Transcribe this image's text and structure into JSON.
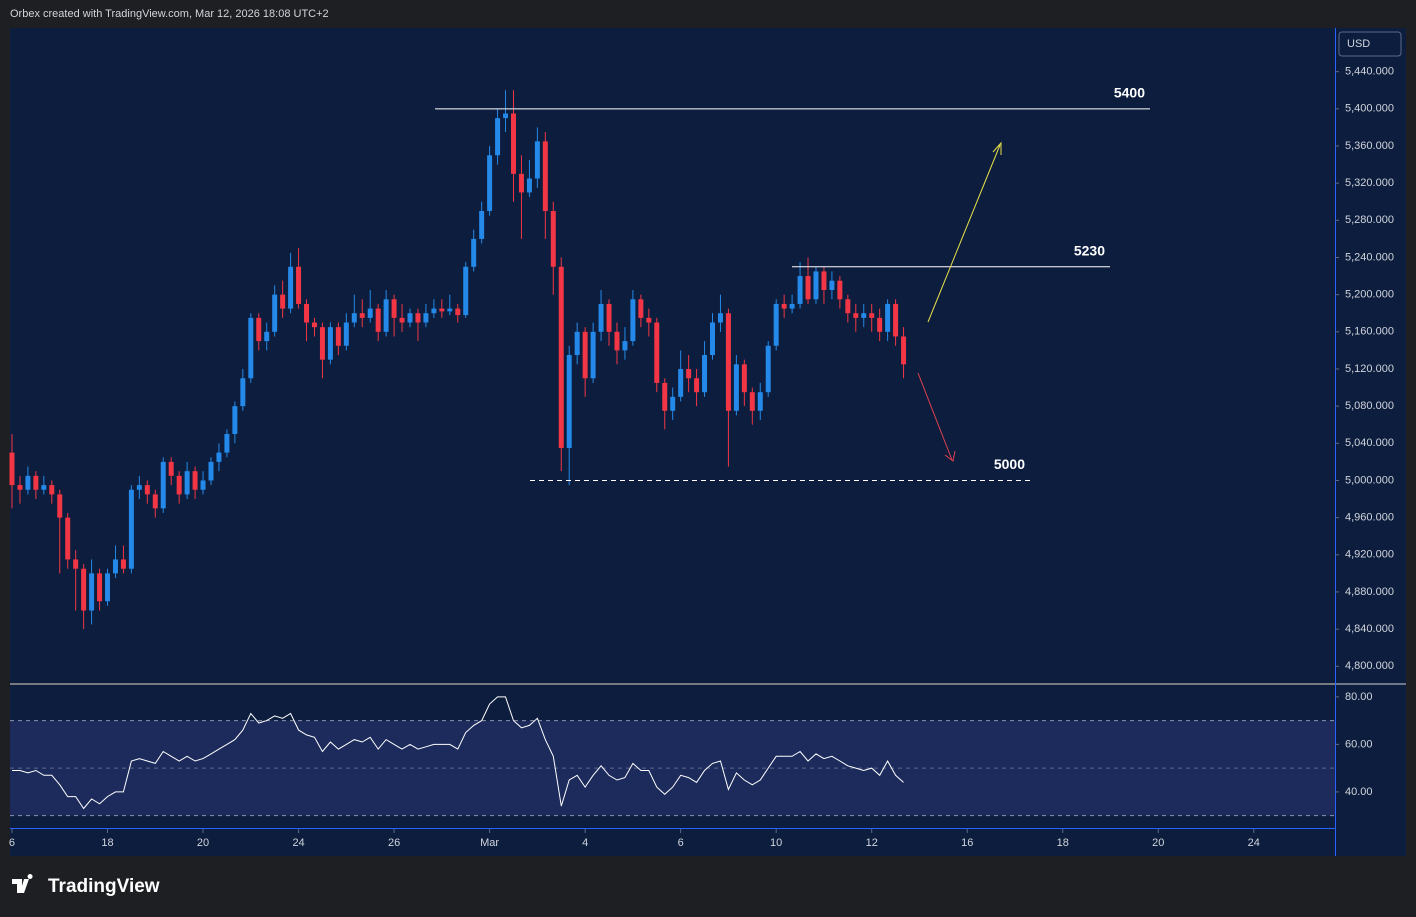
{
  "header": "Orbex created with TradingView.com, Mar 12, 2026 18:08 UTC+2",
  "footer": {
    "brand": "TradingView"
  },
  "chart_data": [
    {
      "type": "candlestick",
      "currency": "USD",
      "up_color": "#2489e8",
      "down_color": "#f23645",
      "grid": false,
      "open": [
        5030,
        4995,
        4990,
        5005,
        4990,
        4995,
        4985,
        4960,
        4915,
        4905,
        4860,
        4900,
        4870,
        4900,
        4915,
        4905,
        4990,
        4995,
        4985,
        4970,
        5020,
        5005,
        4985,
        5010,
        4990,
        5000,
        5020,
        5030,
        5050,
        5080,
        5110,
        5175,
        5150,
        5160,
        5200,
        5185,
        5230,
        5190,
        5170,
        5165,
        5130,
        5165,
        5145,
        5170,
        5180,
        5175,
        5185,
        5160,
        5195,
        5175,
        5170,
        5180,
        5170,
        5180,
        5185,
        5182,
        5185,
        5178,
        5230,
        5260,
        5290,
        5350,
        5390,
        5395,
        5330,
        5310,
        5325,
        5365,
        5290,
        5230,
        5035,
        5135,
        5160,
        5110,
        5160,
        5190,
        5160,
        5140,
        5150,
        5195,
        5175,
        5170,
        5105,
        5075,
        5090,
        5120,
        5110,
        5095,
        5135,
        5170,
        5180,
        5075,
        5125,
        5095,
        5075,
        5095,
        5145,
        5190,
        5185,
        5190,
        5220,
        5195,
        5225,
        5205,
        5215,
        5195,
        5180,
        5175,
        5180,
        5175,
        5160,
        5190,
        5155
      ],
      "high": [
        5050,
        5005,
        5015,
        5010,
        5005,
        5000,
        4990,
        4965,
        4925,
        4910,
        4915,
        4905,
        4905,
        4930,
        4930,
        4995,
        5005,
        5000,
        4990,
        5025,
        5025,
        5010,
        5020,
        5015,
        5010,
        5025,
        5040,
        5055,
        5085,
        5120,
        5180,
        5180,
        5170,
        5210,
        5215,
        5245,
        5250,
        5195,
        5175,
        5170,
        5170,
        5170,
        5180,
        5200,
        5195,
        5205,
        5190,
        5205,
        5200,
        5190,
        5185,
        5185,
        5190,
        5195,
        5195,
        5200,
        5190,
        5235,
        5270,
        5300,
        5360,
        5400,
        5420,
        5420,
        5350,
        5345,
        5380,
        5375,
        5300,
        5240,
        5145,
        5170,
        5165,
        5170,
        5205,
        5195,
        5170,
        5165,
        5205,
        5200,
        5185,
        5175,
        5110,
        5100,
        5140,
        5135,
        5120,
        5150,
        5180,
        5200,
        5185,
        5135,
        5130,
        5100,
        5105,
        5150,
        5195,
        5200,
        5200,
        5235,
        5240,
        5230,
        5230,
        5225,
        5220,
        5200,
        5190,
        5190,
        5190,
        5185,
        5195,
        5195,
        5165
      ],
      "low": [
        4970,
        4975,
        4985,
        4980,
        4985,
        4975,
        4900,
        4905,
        4860,
        4840,
        4845,
        4860,
        4865,
        4895,
        4900,
        4900,
        4980,
        4975,
        4960,
        4965,
        4995,
        4975,
        4980,
        4980,
        4985,
        4995,
        5010,
        5025,
        5040,
        5075,
        5105,
        5140,
        5140,
        5155,
        5175,
        5180,
        5185,
        5150,
        5155,
        5110,
        5125,
        5135,
        5140,
        5165,
        5165,
        5170,
        5150,
        5155,
        5155,
        5160,
        5165,
        5150,
        5165,
        5175,
        5175,
        5178,
        5170,
        5175,
        5225,
        5255,
        5285,
        5340,
        5375,
        5300,
        5260,
        5305,
        5315,
        5260,
        5200,
        5010,
        4995,
        5125,
        5090,
        5105,
        5150,
        5145,
        5125,
        5130,
        5145,
        5165,
        5155,
        5095,
        5055,
        5065,
        5085,
        5095,
        5080,
        5090,
        5130,
        5160,
        5015,
        5070,
        5080,
        5060,
        5065,
        5090,
        5140,
        5175,
        5180,
        5185,
        5190,
        5190,
        5190,
        5195,
        5185,
        5170,
        5160,
        5165,
        5160,
        5150,
        5150,
        5145,
        5110
      ],
      "close": [
        4995,
        4990,
        5005,
        4990,
        4995,
        4985,
        4960,
        4915,
        4905,
        4860,
        4900,
        4870,
        4900,
        4915,
        4905,
        4990,
        4995,
        4985,
        4970,
        5020,
        5005,
        4985,
        5010,
        4990,
        5000,
        5020,
        5030,
        5050,
        5080,
        5110,
        5175,
        5150,
        5160,
        5200,
        5185,
        5230,
        5190,
        5170,
        5165,
        5130,
        5165,
        5145,
        5170,
        5180,
        5175,
        5185,
        5160,
        5195,
        5175,
        5170,
        5180,
        5170,
        5180,
        5185,
        5182,
        5185,
        5178,
        5230,
        5260,
        5290,
        5350,
        5390,
        5395,
        5330,
        5310,
        5325,
        5365,
        5290,
        5230,
        5035,
        5135,
        5160,
        5110,
        5160,
        5190,
        5160,
        5140,
        5150,
        5195,
        5175,
        5170,
        5105,
        5075,
        5090,
        5120,
        5110,
        5095,
        5135,
        5170,
        5180,
        5075,
        5125,
        5095,
        5075,
        5095,
        5145,
        5190,
        5185,
        5190,
        5220,
        5195,
        5225,
        5205,
        5215,
        5195,
        5180,
        5175,
        5180,
        5175,
        5160,
        5190,
        5155,
        5125
      ],
      "xlim": [
        -0.25,
        166.2
      ],
      "xticks": [
        {
          "value": 0,
          "label": "6"
        },
        {
          "value": 12,
          "label": "18"
        },
        {
          "value": 24,
          "label": "20"
        },
        {
          "value": 36,
          "label": "24"
        },
        {
          "value": 48,
          "label": "26"
        },
        {
          "value": 60,
          "label": "Mar"
        },
        {
          "value": 72,
          "label": "4"
        },
        {
          "value": 84,
          "label": "6"
        },
        {
          "value": 96,
          "label": "10"
        },
        {
          "value": 108,
          "label": "12"
        },
        {
          "value": 120,
          "label": "16"
        },
        {
          "value": 132,
          "label": "18"
        },
        {
          "value": 144,
          "label": "20"
        },
        {
          "value": 156,
          "label": "24"
        }
      ],
      "ylim": [
        4782,
        5487
      ],
      "yticks": [
        {
          "value": 4800,
          "label": "4,800.000"
        },
        {
          "value": 4840,
          "label": "4,840.000"
        },
        {
          "value": 4880,
          "label": "4,880.000"
        },
        {
          "value": 4920,
          "label": "4,920.000"
        },
        {
          "value": 4960,
          "label": "4,960.000"
        },
        {
          "value": 5000,
          "label": "5,000.000"
        },
        {
          "value": 5040,
          "label": "5,040.000"
        },
        {
          "value": 5080,
          "label": "5,080.000"
        },
        {
          "value": 5120,
          "label": "5,120.000"
        },
        {
          "value": 5160,
          "label": "5,160.000"
        },
        {
          "value": 5200,
          "label": "5,200.000"
        },
        {
          "value": 5240,
          "label": "5,240.000"
        },
        {
          "value": 5280,
          "label": "5,280.000"
        },
        {
          "value": 5320,
          "label": "5,320.000"
        },
        {
          "value": 5360,
          "label": "5,360.000"
        },
        {
          "value": 5400,
          "label": "5,400.000"
        },
        {
          "value": 5440,
          "label": "5,440.000"
        }
      ],
      "levels": [
        {
          "value": 5400,
          "label": "5400",
          "style": "solid"
        },
        {
          "value": 5230,
          "label": "5230",
          "style": "solid"
        },
        {
          "value": 5000,
          "label": "5000",
          "style": "dashed"
        }
      ]
    },
    {
      "type": "line",
      "color": "#ffffff",
      "band": [
        30,
        70
      ],
      "band_color": "#1c2b5c",
      "values": [
        49,
        49,
        48,
        49,
        47,
        47,
        43,
        38,
        38,
        33,
        37,
        35,
        38,
        40,
        40,
        53,
        54,
        53,
        52,
        57,
        55,
        53,
        55,
        53,
        54,
        56,
        58,
        60,
        62,
        66,
        73,
        69,
        70,
        72,
        71,
        73,
        66,
        64,
        63,
        57,
        61,
        58,
        60,
        62,
        61,
        63,
        58,
        62,
        60,
        58,
        60,
        58,
        59,
        60,
        60,
        60,
        58,
        65,
        68,
        70,
        77,
        80,
        80,
        70,
        67,
        68,
        71,
        62,
        55,
        34,
        45,
        47,
        42,
        47,
        51,
        47,
        45,
        46,
        52,
        49,
        49,
        42,
        39,
        42,
        47,
        46,
        44,
        49,
        52,
        53,
        41,
        48,
        45,
        43,
        45,
        50,
        55,
        55,
        55,
        57,
        53,
        56,
        54,
        55,
        53,
        51,
        50,
        49,
        50,
        47,
        53,
        47,
        44
      ],
      "xlim": [
        -0.25,
        166.2
      ],
      "ylim": [
        24.8,
        85
      ],
      "yticks": [
        {
          "value": 40,
          "label": "40.00"
        },
        {
          "value": 60,
          "label": "60.00"
        },
        {
          "value": 80,
          "label": "80.00"
        }
      ]
    }
  ]
}
